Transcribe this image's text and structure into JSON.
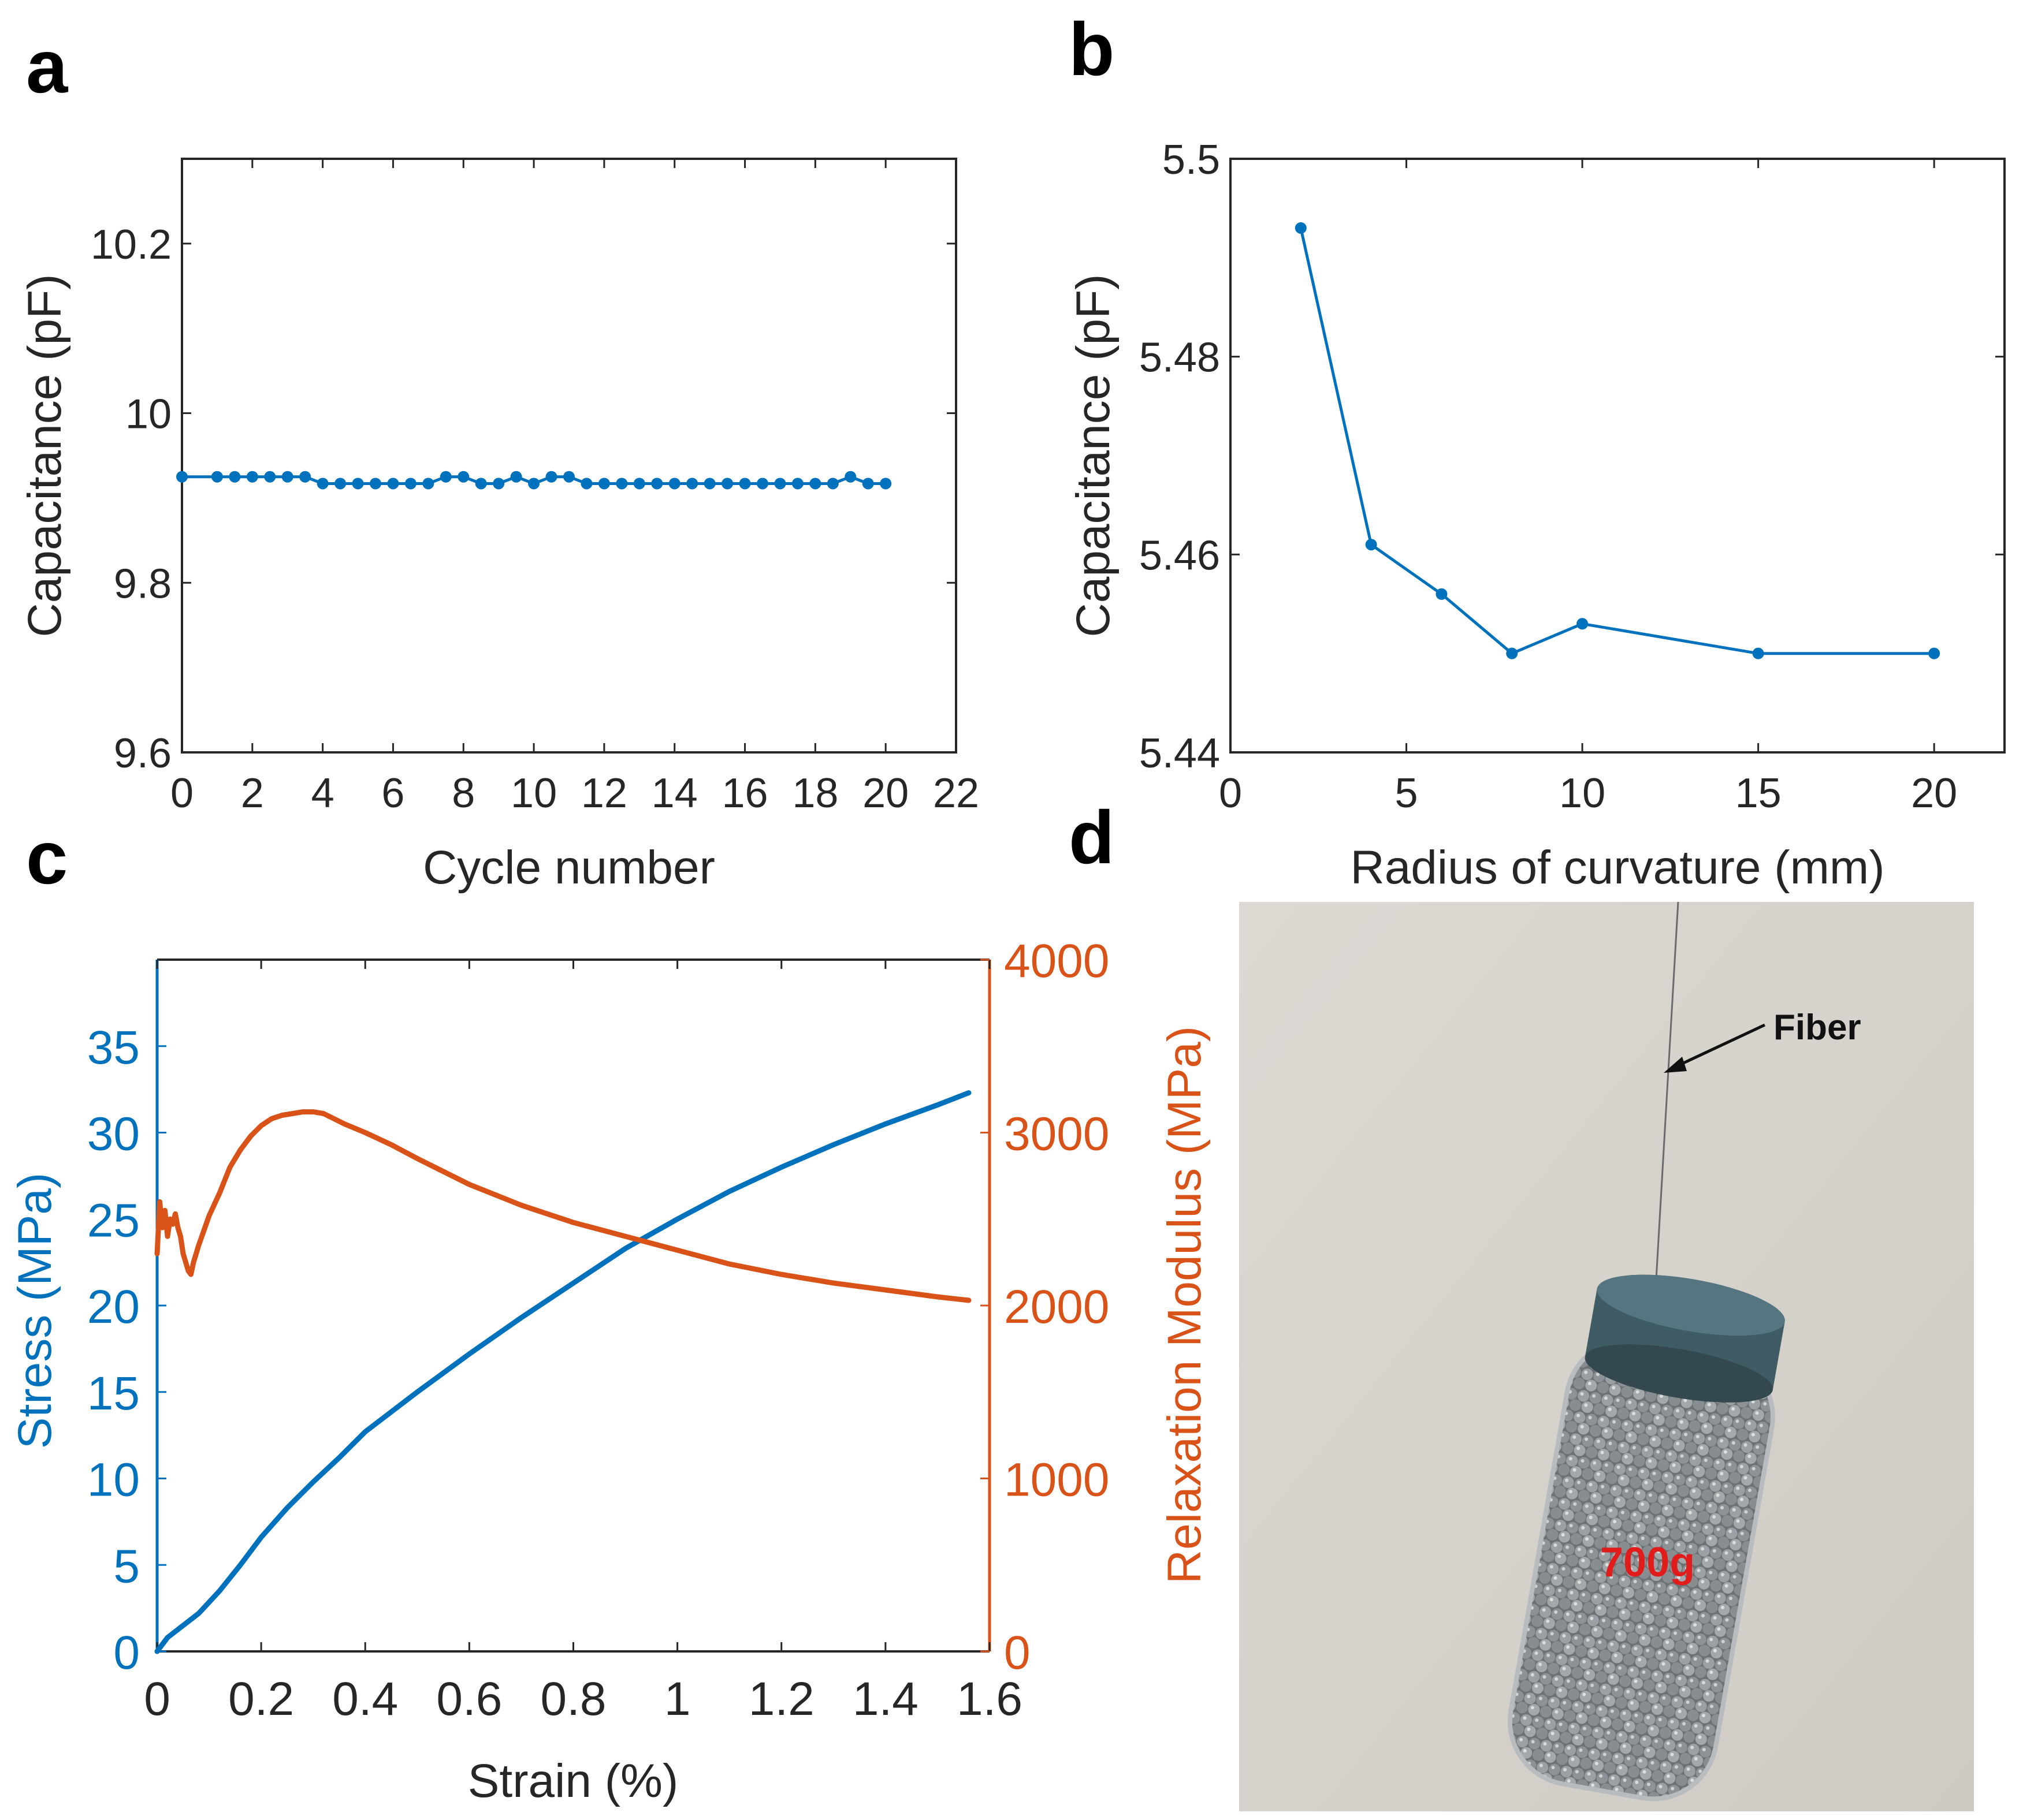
{
  "colors": {
    "blue": "#0072BD",
    "orange": "#D95319",
    "axis": "#262626",
    "photo_wall": "#d9d6d0",
    "jar_cap": "#3f5b63",
    "ball": "#8a8f92",
    "label_red": "#e21b1b"
  },
  "panels": {
    "a": "a",
    "b": "b",
    "c": "c",
    "d": "d"
  },
  "chart_data": [
    {
      "id": "a",
      "type": "line",
      "title": "",
      "xlabel": "Cycle number",
      "ylabel": "Capacitance (pF)",
      "xlim": [
        0,
        22
      ],
      "ylim": [
        9.6,
        10.3
      ],
      "xticks": [
        0,
        2,
        4,
        6,
        8,
        10,
        12,
        14,
        16,
        18,
        20,
        22
      ],
      "yticks": [
        9.6,
        9.8,
        10,
        10.2
      ],
      "yticklabels": [
        "9.6",
        "9.8",
        "10",
        "10.2"
      ],
      "series": [
        {
          "name": "Capacitance",
          "x": [
            0,
            1,
            1.5,
            2,
            2.5,
            3,
            3.5,
            4,
            4.5,
            5,
            5.5,
            6,
            6.5,
            7,
            7.5,
            8,
            8.5,
            9,
            9.5,
            10,
            10.5,
            11,
            11.5,
            12,
            12.5,
            13,
            13.5,
            14,
            14.5,
            15,
            15.5,
            16,
            16.5,
            17,
            17.5,
            18,
            18.5,
            19,
            19.5,
            20
          ],
          "y": [
            9.925,
            9.925,
            9.925,
            9.925,
            9.925,
            9.925,
            9.925,
            9.917,
            9.917,
            9.917,
            9.917,
            9.917,
            9.917,
            9.917,
            9.925,
            9.925,
            9.917,
            9.917,
            9.925,
            9.917,
            9.925,
            9.925,
            9.917,
            9.917,
            9.917,
            9.917,
            9.917,
            9.917,
            9.917,
            9.917,
            9.917,
            9.917,
            9.917,
            9.917,
            9.917,
            9.917,
            9.917,
            9.925,
            9.917,
            9.917
          ]
        }
      ]
    },
    {
      "id": "b",
      "type": "line",
      "title": "",
      "xlabel": "Radius of curvature (mm)",
      "ylabel": "Capacitance (pF)",
      "xlim": [
        0,
        22
      ],
      "ylim": [
        5.44,
        5.5
      ],
      "xticks": [
        0,
        5,
        10,
        15,
        20
      ],
      "yticks": [
        5.44,
        5.46,
        5.48,
        5.5
      ],
      "yticklabels": [
        "5.44",
        "5.46",
        "5.48",
        "5.5"
      ],
      "series": [
        {
          "name": "Capacitance",
          "x": [
            2,
            4,
            6,
            8,
            10,
            15,
            20
          ],
          "y": [
            5.493,
            5.461,
            5.456,
            5.45,
            5.453,
            5.45,
            5.45
          ]
        }
      ]
    },
    {
      "id": "c",
      "type": "line",
      "title": "",
      "xlabel": "Strain (%)",
      "ylabel": "Stress (MPa)",
      "y2label": "Relaxation Modulus (MPa)",
      "xlim": [
        0,
        1.6
      ],
      "ylim": [
        0,
        40
      ],
      "y2lim": [
        0,
        4000
      ],
      "xticks": [
        0,
        0.2,
        0.4,
        0.6,
        0.8,
        1,
        1.2,
        1.4,
        1.6
      ],
      "xticklabels": [
        "0",
        "0.2",
        "0.4",
        "0.6",
        "0.8",
        "1",
        "1.2",
        "1.4",
        "1.6"
      ],
      "yticks": [
        0,
        5,
        10,
        15,
        20,
        25,
        30,
        35
      ],
      "y2ticks": [
        0,
        1000,
        2000,
        3000,
        4000
      ],
      "series": [
        {
          "name": "Stress (MPa)",
          "axis": "left",
          "x": [
            0,
            0.02,
            0.05,
            0.08,
            0.12,
            0.16,
            0.2,
            0.25,
            0.3,
            0.35,
            0.4,
            0.5,
            0.6,
            0.7,
            0.8,
            0.9,
            1.0,
            1.1,
            1.2,
            1.3,
            1.4,
            1.5,
            1.56
          ],
          "y": [
            0,
            0.8,
            1.5,
            2.2,
            3.5,
            5.0,
            6.6,
            8.3,
            9.8,
            11.2,
            12.7,
            15.0,
            17.2,
            19.3,
            21.3,
            23.3,
            25.0,
            26.6,
            28.0,
            29.3,
            30.5,
            31.6,
            32.3
          ]
        },
        {
          "name": "Relaxation Modulus (MPa)",
          "axis": "right",
          "x": [
            0,
            0.005,
            0.01,
            0.015,
            0.02,
            0.025,
            0.03,
            0.035,
            0.04,
            0.045,
            0.05,
            0.055,
            0.06,
            0.065,
            0.07,
            0.08,
            0.1,
            0.12,
            0.14,
            0.16,
            0.18,
            0.2,
            0.22,
            0.24,
            0.26,
            0.28,
            0.3,
            0.32,
            0.34,
            0.36,
            0.4,
            0.45,
            0.5,
            0.6,
            0.7,
            0.8,
            0.9,
            1.0,
            1.1,
            1.2,
            1.3,
            1.4,
            1.5,
            1.56
          ],
          "y": [
            2300,
            2600,
            2450,
            2550,
            2400,
            2500,
            2470,
            2530,
            2450,
            2400,
            2300,
            2250,
            2200,
            2180,
            2250,
            2350,
            2520,
            2650,
            2800,
            2900,
            2980,
            3040,
            3080,
            3100,
            3110,
            3120,
            3120,
            3110,
            3080,
            3050,
            3000,
            2930,
            2850,
            2700,
            2580,
            2480,
            2400,
            2320,
            2240,
            2180,
            2130,
            2090,
            2050,
            2030
          ]
        }
      ]
    }
  ],
  "photo": {
    "fiber_label": "Fiber",
    "weight_label": "700g"
  }
}
